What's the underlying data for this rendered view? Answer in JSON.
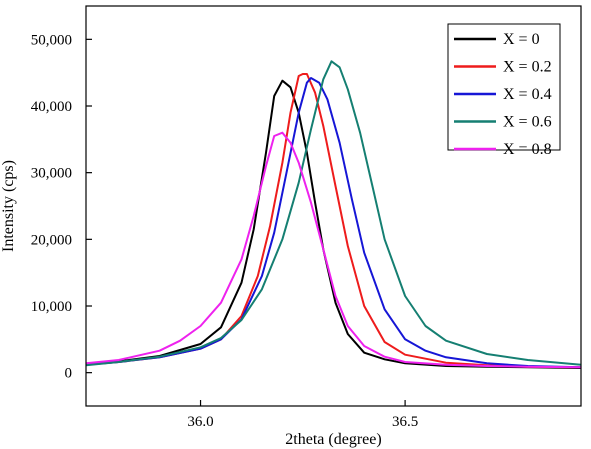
{
  "chart_data": {
    "type": "line",
    "xlabel": "2theta (degree)",
    "ylabel": "Intensity (cps)",
    "xlim": [
      35.72,
      36.93
    ],
    "ylim": [
      -5000,
      55000
    ],
    "x_ticks": [
      36.0,
      36.5
    ],
    "x_tick_labels": [
      "36.0",
      "36.5"
    ],
    "y_ticks": [
      0,
      10000,
      20000,
      30000,
      40000,
      50000
    ],
    "y_tick_labels": [
      "0",
      "10,000",
      "20,000",
      "30,000",
      "40,000",
      "50,000"
    ],
    "grid": false,
    "legend_position": "top-right",
    "series": [
      {
        "name": "X = 0",
        "color": "#000000",
        "x": [
          35.72,
          35.8,
          35.9,
          36.0,
          36.05,
          36.1,
          36.13,
          36.16,
          36.18,
          36.2,
          36.22,
          36.24,
          36.26,
          36.28,
          36.3,
          36.33,
          36.36,
          36.4,
          36.45,
          36.5,
          36.6,
          36.7,
          36.8,
          36.93
        ],
        "y": [
          1300,
          1700,
          2500,
          4300,
          6800,
          13500,
          21500,
          33000,
          41500,
          43800,
          42800,
          39000,
          33000,
          25500,
          18500,
          10500,
          5800,
          3000,
          2000,
          1400,
          1000,
          900,
          800,
          700
        ]
      },
      {
        "name": "X = 0.2",
        "color": "#ee1c1c",
        "x": [
          35.72,
          35.8,
          35.9,
          36.0,
          36.05,
          36.1,
          36.14,
          36.17,
          36.2,
          36.22,
          36.24,
          36.25,
          36.26,
          36.28,
          36.3,
          36.33,
          36.36,
          36.4,
          36.45,
          36.5,
          36.6,
          36.7,
          36.8,
          36.93
        ],
        "y": [
          1200,
          1600,
          2300,
          3600,
          5000,
          8500,
          14500,
          22000,
          31500,
          39000,
          44500,
          44800,
          44800,
          42000,
          37000,
          28000,
          19000,
          10000,
          4600,
          2700,
          1500,
          1100,
          900,
          800
        ]
      },
      {
        "name": "X = 0.4",
        "color": "#1616d6",
        "x": [
          35.72,
          35.8,
          35.9,
          36.0,
          36.05,
          36.1,
          36.15,
          36.18,
          36.21,
          36.24,
          36.26,
          36.27,
          36.29,
          36.31,
          36.34,
          36.37,
          36.4,
          36.45,
          36.5,
          36.55,
          36.6,
          36.7,
          36.8,
          36.93
        ],
        "y": [
          1200,
          1600,
          2300,
          3600,
          5000,
          8000,
          14500,
          21000,
          30000,
          39000,
          43500,
          44200,
          43500,
          41000,
          34500,
          26000,
          18000,
          9500,
          5000,
          3300,
          2300,
          1400,
          1000,
          800
        ]
      },
      {
        "name": "X = 0.6",
        "color": "#157f72",
        "x": [
          35.72,
          35.8,
          35.9,
          36.0,
          36.05,
          36.1,
          36.15,
          36.2,
          36.24,
          36.27,
          36.3,
          36.32,
          36.34,
          36.36,
          36.39,
          36.42,
          36.45,
          36.5,
          36.55,
          36.6,
          36.7,
          36.8,
          36.93
        ],
        "y": [
          1100,
          1600,
          2400,
          3800,
          5200,
          7900,
          12500,
          20000,
          28500,
          36500,
          44000,
          46700,
          45800,
          42500,
          36000,
          28000,
          20000,
          11500,
          7000,
          4800,
          2800,
          1900,
          1200
        ]
      },
      {
        "name": "X = 0.8",
        "color": "#ee22ee",
        "x": [
          35.72,
          35.8,
          35.9,
          35.95,
          36.0,
          36.05,
          36.1,
          36.13,
          36.16,
          36.18,
          36.2,
          36.22,
          36.24,
          36.27,
          36.3,
          36.33,
          36.36,
          36.4,
          36.45,
          36.5,
          36.6,
          36.7,
          36.8,
          36.93
        ],
        "y": [
          1400,
          1900,
          3300,
          4800,
          7000,
          10500,
          17000,
          23500,
          31000,
          35500,
          36000,
          34500,
          31500,
          25500,
          18500,
          11500,
          7000,
          4000,
          2400,
          1600,
          1200,
          1000,
          900,
          800
        ]
      }
    ]
  }
}
